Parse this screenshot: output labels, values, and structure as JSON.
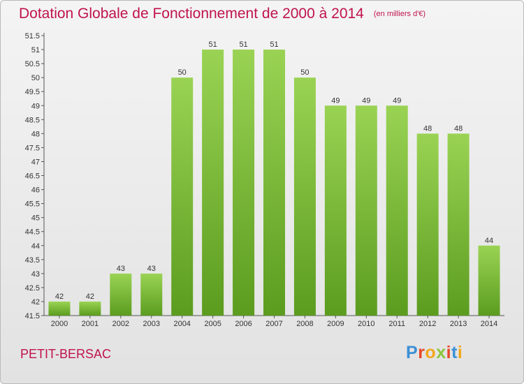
{
  "header": {
    "title": "Dotation Globale de Fonctionnement de 2000 à 2014",
    "subtitle": "(en milliers d'€)"
  },
  "footer": {
    "commune": "PETIT-BERSAC",
    "logo_text": "Proxiti",
    "logo_colors": [
      "#3b8fd6",
      "#e8462a",
      "#f2a81d",
      "#8cc63e",
      "#e8462a",
      "#3b8fd6",
      "#f2a81d"
    ]
  },
  "colors": {
    "bar_light": "#9ad354",
    "bar_dark": "#5b9c1f",
    "accent": "#c0134d",
    "text": "#333333"
  },
  "chart_data": {
    "type": "bar",
    "categories": [
      "2000",
      "2001",
      "2002",
      "2003",
      "2004",
      "2005",
      "2006",
      "2007",
      "2008",
      "2009",
      "2010",
      "2011",
      "2012",
      "2013",
      "2014"
    ],
    "values": [
      42,
      42,
      43,
      43,
      50,
      51,
      51,
      51,
      50,
      49,
      49,
      49,
      48,
      48,
      44
    ],
    "data_labels": [
      "42",
      "42",
      "43",
      "43",
      "50",
      "51",
      "51",
      "51",
      "50",
      "49",
      "49",
      "49",
      "48",
      "48",
      "44"
    ],
    "yticks": [
      "41.5",
      "42",
      "42.5",
      "43",
      "43.5",
      "44",
      "44.5",
      "45",
      "45.5",
      "46",
      "46.5",
      "47",
      "47.5",
      "48",
      "48.5",
      "49",
      "49.5",
      "50",
      "50.5",
      "51",
      "51.5"
    ],
    "ylim": [
      41.5,
      51.5
    ],
    "grid": false,
    "legend": "none"
  }
}
